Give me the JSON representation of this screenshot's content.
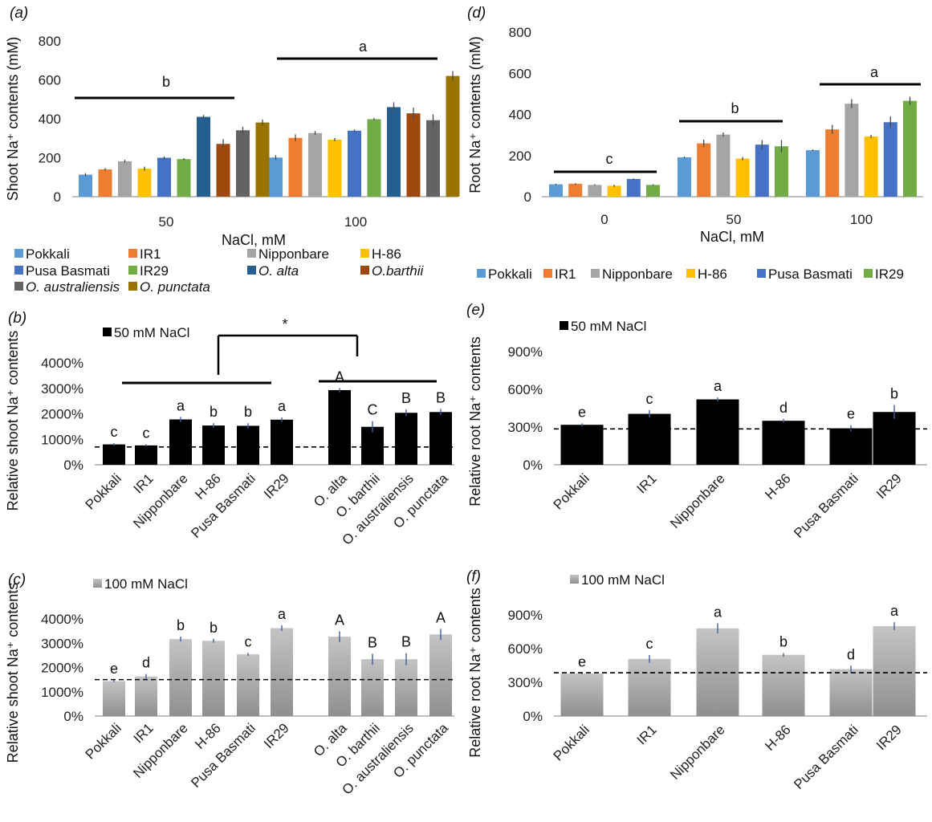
{
  "chart_data": [
    {
      "panel": "a",
      "type": "bar",
      "ylabel": "Shoot Na⁺ contents (mM)",
      "xlabel": "NaCl, mM",
      "ylim": [
        0,
        800
      ],
      "yticks": [
        "0",
        "200",
        "400",
        "600",
        "800"
      ],
      "categories": [
        "50",
        "100"
      ],
      "series": [
        {
          "name": "Pokkali",
          "color": "#5B9BD5",
          "values": [
            113,
            201
          ],
          "errors": [
            8,
            12
          ]
        },
        {
          "name": "IR1",
          "color": "#ED7D31",
          "values": [
            140,
            302
          ],
          "errors": [
            7,
            18
          ]
        },
        {
          "name": "Nipponbare",
          "color": "#A5A5A5",
          "values": [
            182,
            327
          ],
          "errors": [
            8,
            10
          ]
        },
        {
          "name": "H-86",
          "color": "#FFC000",
          "values": [
            144,
            293
          ],
          "errors": [
            10,
            8
          ]
        },
        {
          "name": "Pusa Basmati",
          "color": "#4472C4",
          "values": [
            200,
            339
          ],
          "errors": [
            7,
            6
          ]
        },
        {
          "name": "IR29",
          "color": "#70AD47",
          "values": [
            193,
            398
          ],
          "errors": [
            5,
            6
          ]
        },
        {
          "name": "O. alta",
          "color": "#255E91",
          "values": [
            410,
            460
          ],
          "errors": [
            10,
            25
          ]
        },
        {
          "name": "O.barthii",
          "color": "#9E480E",
          "values": [
            271,
            428
          ],
          "errors": [
            25,
            30
          ]
        },
        {
          "name": "O. australiensis",
          "color": "#636363",
          "values": [
            341,
            393
          ],
          "errors": [
            18,
            30
          ]
        },
        {
          "name": "O. punctata",
          "color": "#997300",
          "values": [
            381,
            620
          ],
          "errors": [
            15,
            25
          ]
        }
      ],
      "significance": [
        {
          "label": "b",
          "x0": 0,
          "x1": 0
        },
        {
          "label": "a",
          "x0": 1,
          "x1": 1
        }
      ]
    },
    {
      "panel": "d",
      "type": "bar",
      "ylabel": "Root Na⁺ contents (mM)",
      "xlabel": "NaCl, mM",
      "ylim": [
        0,
        800
      ],
      "yticks": [
        "0",
        "200",
        "400",
        "600",
        "800"
      ],
      "categories": [
        "0",
        "50",
        "100"
      ],
      "series": [
        {
          "name": "Pokkali",
          "color": "#5B9BD5",
          "values": [
            60,
            191,
            226
          ],
          "errors": [
            3,
            4,
            4
          ]
        },
        {
          "name": "IR1",
          "color": "#ED7D31",
          "values": [
            63,
            259,
            327
          ],
          "errors": [
            3,
            18,
            22
          ]
        },
        {
          "name": "Nipponbare",
          "color": "#A5A5A5",
          "values": [
            57,
            302,
            452
          ],
          "errors": [
            3,
            10,
            22
          ]
        },
        {
          "name": "H-86",
          "color": "#FFC000",
          "values": [
            53,
            185,
            293
          ],
          "errors": [
            5,
            8,
            8
          ]
        },
        {
          "name": "Pusa Basmati",
          "color": "#4472C4",
          "values": [
            86,
            253,
            362
          ],
          "errors": [
            3,
            22,
            28
          ]
        },
        {
          "name": "IR29",
          "color": "#70AD47",
          "values": [
            57,
            245,
            466
          ],
          "errors": [
            3,
            30,
            20
          ]
        }
      ],
      "significance": [
        {
          "label": "c"
        },
        {
          "label": "b"
        },
        {
          "label": "a"
        }
      ]
    },
    {
      "panel": "b",
      "type": "bar",
      "legend": "50 mM NaCl",
      "ylabel": "Relative shoot Na⁺ contents",
      "ylim": [
        0,
        4000
      ],
      "yticks": [
        "0%",
        "1000%",
        "2000%",
        "3000%",
        "4000%"
      ],
      "baseline": 700,
      "star": "*",
      "categories": [
        "Pokkali",
        "IR1",
        "Nipponbare",
        "H-86",
        "Pusa Basmati",
        "IR29",
        "O. alta",
        "O. barthii",
        "O. australiensis",
        "O. punctata"
      ],
      "values": [
        800,
        760,
        1780,
        1540,
        1530,
        1770,
        2930,
        1490,
        2040,
        2070
      ],
      "errors": [
        50,
        40,
        100,
        90,
        100,
        90,
        80,
        220,
        130,
        120
      ],
      "letters": [
        "c",
        "c",
        "a",
        "b",
        "b",
        "a",
        "A",
        "C",
        "B",
        "B"
      ]
    },
    {
      "panel": "c",
      "type": "bar",
      "legend": "100 mM NaCl",
      "ylabel": "Relative shoot Na⁺ contents",
      "ylim": [
        0,
        4000
      ],
      "yticks": [
        "0%",
        "1000%",
        "2000%",
        "3000%",
        "4000%"
      ],
      "baseline": 1500,
      "categories": [
        "Pokkali",
        "IR1",
        "Nipponbare",
        "H-86",
        "Pusa Basmati",
        "IR29",
        "O. alta",
        "O. barthii",
        "O. australiensis",
        "O. punctata"
      ],
      "values": [
        1440,
        1630,
        3170,
        3100,
        2540,
        3620,
        3270,
        2340,
        2340,
        3360
      ],
      "errors": [
        40,
        100,
        100,
        80,
        60,
        120,
        220,
        230,
        250,
        230
      ],
      "letters": [
        "e",
        "d",
        "b",
        "b",
        "c",
        "a",
        "A",
        "B",
        "B",
        "A"
      ]
    },
    {
      "panel": "e",
      "type": "bar",
      "legend": "50 mM NaCl",
      "ylabel": "Relative root Na⁺ contents",
      "ylim": [
        0,
        900
      ],
      "yticks": [
        "0%",
        "300%",
        "600%",
        "900%"
      ],
      "baseline": 285,
      "categories": [
        "Pokkali",
        "IR1",
        "Nipponbare",
        "H-86",
        "Pusa Basmati",
        "IR29"
      ],
      "values": [
        318,
        405,
        520,
        350,
        290,
        420
      ],
      "errors": [
        12,
        30,
        15,
        15,
        25,
        55
      ],
      "letters": [
        "e",
        "c",
        "a",
        "d",
        "e",
        "b"
      ]
    },
    {
      "panel": "f",
      "type": "bar",
      "legend": "100 mM NaCl",
      "ylabel": "Relative root Na⁺ contents",
      "ylim": [
        0,
        900
      ],
      "yticks": [
        "0%",
        "300%",
        "600%",
        "900%"
      ],
      "baseline": 385,
      "categories": [
        "Pokkali",
        "IR1",
        "Nipponbare",
        "H-86",
        "Pusa Basmati",
        "IR29"
      ],
      "values": [
        378,
        508,
        780,
        545,
        418,
        800
      ],
      "errors": [
        5,
        35,
        45,
        15,
        30,
        35
      ],
      "letters": [
        "e",
        "c",
        "a",
        "b",
        "d",
        "a"
      ]
    }
  ]
}
